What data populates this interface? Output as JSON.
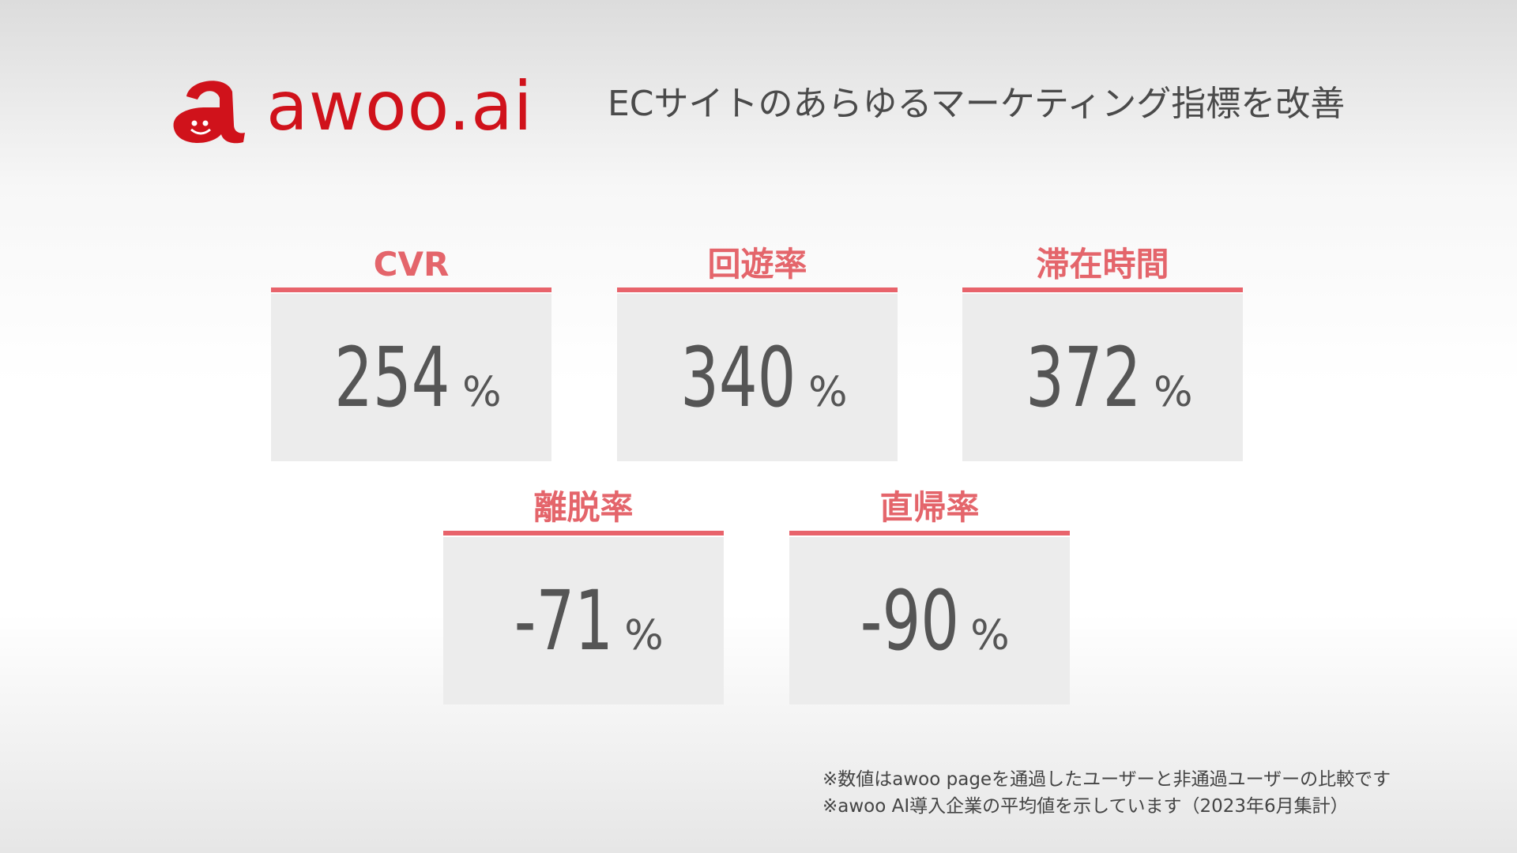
{
  "header": {
    "logo": "awoo.ai",
    "tagline": "ECサイトのあらゆるマーケティング指標を改善"
  },
  "cards": [
    {
      "label": "CVR",
      "value": 254,
      "unit": "%"
    },
    {
      "label": "回遊率",
      "value": 340,
      "unit": "%"
    },
    {
      "label": "滞在時間",
      "value": 372,
      "unit": "%"
    },
    {
      "label": "離脱率",
      "value": -71,
      "unit": "%"
    },
    {
      "label": "直帰率",
      "value": -90,
      "unit": "%"
    }
  ],
  "footnotes": [
    "※数値はawoo pageを通過したユーザーと非通過ユーザーの比較です",
    "※awoo AI導入企業の平均値を示しています（2023年6月集計）"
  ]
}
